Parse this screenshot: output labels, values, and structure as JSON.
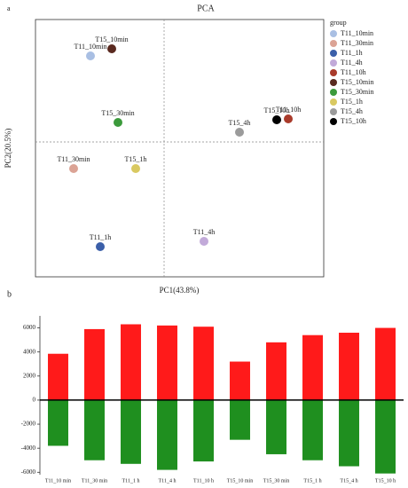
{
  "chart_data": [
    {
      "type": "scatter",
      "panel": "a",
      "title": "PCA",
      "xlabel": "PC1(43.8%)",
      "ylabel": "PC2(20.5%)",
      "legend_title": "group",
      "xlim": [
        -145,
        180
      ],
      "ylim": [
        -152,
        138
      ],
      "series": [
        {
          "name": "T11_10min",
          "color": "#a9bfe3",
          "x": [
            -83
          ],
          "values": [
            97
          ]
        },
        {
          "name": "T11_30min",
          "color": "#dba395",
          "x": [
            -102
          ],
          "values": [
            -30
          ]
        },
        {
          "name": "T11_1h",
          "color": "#3b5fa9",
          "x": [
            -72
          ],
          "values": [
            -118
          ]
        },
        {
          "name": "T11_4h",
          "color": "#c2aad9",
          "x": [
            45
          ],
          "values": [
            -112
          ]
        },
        {
          "name": "T11_10h",
          "color": "#a93b2b",
          "x": [
            140
          ],
          "values": [
            26
          ]
        },
        {
          "name": "T15_10min",
          "color": "#5a2a20",
          "x": [
            -59
          ],
          "values": [
            105
          ]
        },
        {
          "name": "T15_30min",
          "color": "#3b9a3b",
          "x": [
            -52
          ],
          "values": [
            22
          ]
        },
        {
          "name": "T15_1h",
          "color": "#d9c961",
          "x": [
            -32
          ],
          "values": [
            -30
          ]
        },
        {
          "name": "T15_4h",
          "color": "#9b9b9b",
          "x": [
            85
          ],
          "values": [
            11
          ]
        },
        {
          "name": "T15_10h",
          "color": "#000000",
          "x": [
            127
          ],
          "values": [
            25
          ]
        }
      ]
    },
    {
      "type": "bar",
      "panel": "b",
      "categories": [
        "T11_10 min",
        "T11_30 min",
        "T11_1 h",
        "T11_4 h",
        "T11_10 h",
        "T15_10 min",
        "T15_30 min",
        "T15_1 h",
        "T15_4 h",
        "T15_10 h"
      ],
      "ylim": [
        -6200,
        7000
      ],
      "yticks": [
        -6000,
        -4000,
        -2000,
        0,
        2000,
        4000,
        6000
      ],
      "series": [
        {
          "color": "#ff1a1a",
          "values": [
            3850,
            5900,
            6300,
            6200,
            6100,
            3200,
            4800,
            5400,
            5600,
            6000
          ]
        },
        {
          "color": "#1f8f1f",
          "values": [
            -3800,
            -5000,
            -5300,
            -5800,
            -5100,
            -3300,
            -4500,
            -5000,
            -5500,
            -6100
          ]
        }
      ]
    }
  ]
}
